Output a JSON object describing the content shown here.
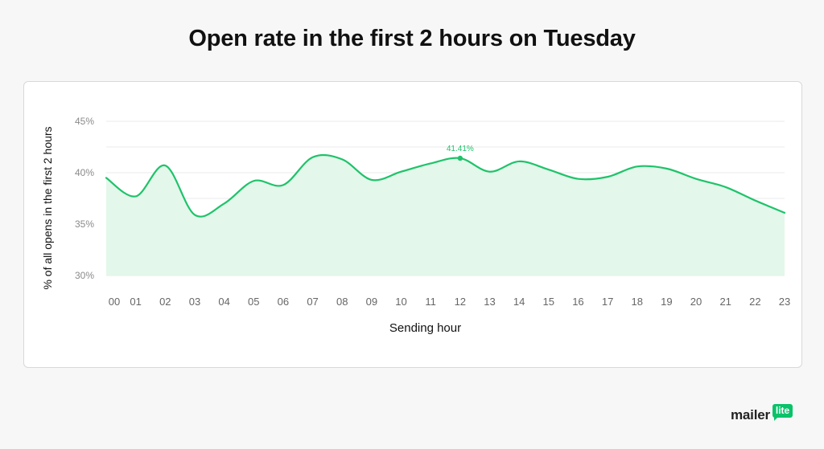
{
  "title": "Open rate in the first 2 hours on Tuesday",
  "brand": {
    "word": "mailer",
    "badge": "lite"
  },
  "colors": {
    "line": "#1ec36a",
    "fill": "#e3f7ea",
    "grid": "#ebebeb",
    "tick_text": "#8a8a8a",
    "annotation": "#1ec36a"
  },
  "chart_data": {
    "type": "area",
    "xlabel": "Sending hour",
    "ylabel": "% of all opens in the first 2 hours",
    "x": [
      "00",
      "01",
      "02",
      "03",
      "04",
      "05",
      "06",
      "07",
      "08",
      "09",
      "10",
      "11",
      "12",
      "13",
      "14",
      "15",
      "16",
      "17",
      "18",
      "19",
      "20",
      "21",
      "22",
      "23"
    ],
    "values": [
      39.5,
      37.7,
      40.7,
      35.9,
      37.0,
      39.2,
      38.8,
      41.5,
      41.3,
      39.3,
      40.1,
      40.9,
      41.41,
      40.1,
      41.1,
      40.3,
      39.4,
      39.6,
      40.6,
      40.4,
      39.4,
      38.6,
      37.3,
      36.1
    ],
    "yticks": [
      30,
      35,
      40,
      45
    ],
    "ytick_labels": [
      "30%",
      "35%",
      "40%",
      "45%"
    ],
    "ylim": [
      30,
      45
    ],
    "grid": true,
    "annotation": {
      "x": "12",
      "value": 41.41,
      "label": "41.41%"
    }
  }
}
